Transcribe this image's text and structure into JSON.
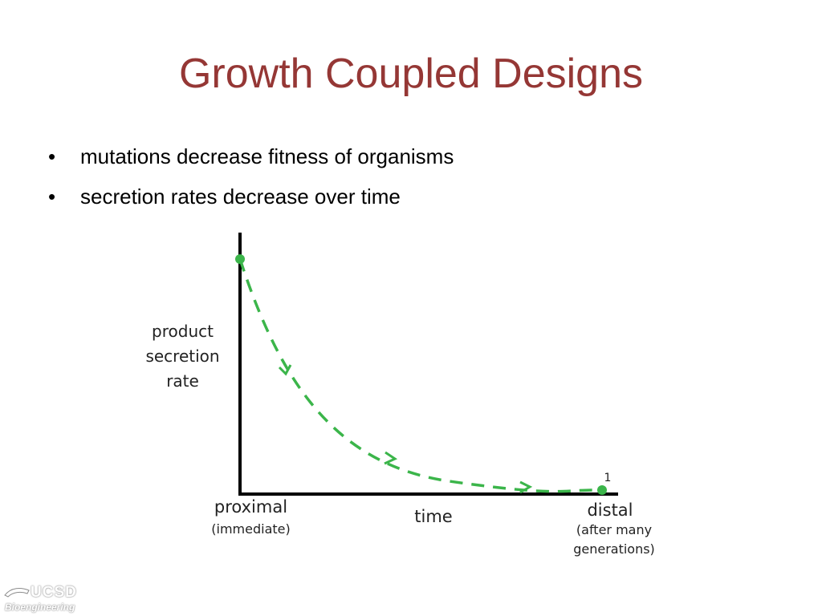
{
  "slide": {
    "title": "Growth Coupled Designs",
    "bullets": [
      "mutations decrease fitness of organisms",
      "secretion rates decrease over time"
    ]
  },
  "diagram": {
    "y_label": "product\nsecretion\nrate",
    "x_label": "time",
    "x_left_label": "proximal",
    "x_left_sublabel": "(immediate)",
    "x_right_label": "distal",
    "x_right_sublabel": "(after many\ngenerations)",
    "end_point_label": "1",
    "curve_color": "#3bb54a",
    "axis_color": "#000000"
  },
  "logo": {
    "top": "UCSD",
    "bottom": "Bioengineering"
  },
  "colors": {
    "title": "#953735"
  }
}
